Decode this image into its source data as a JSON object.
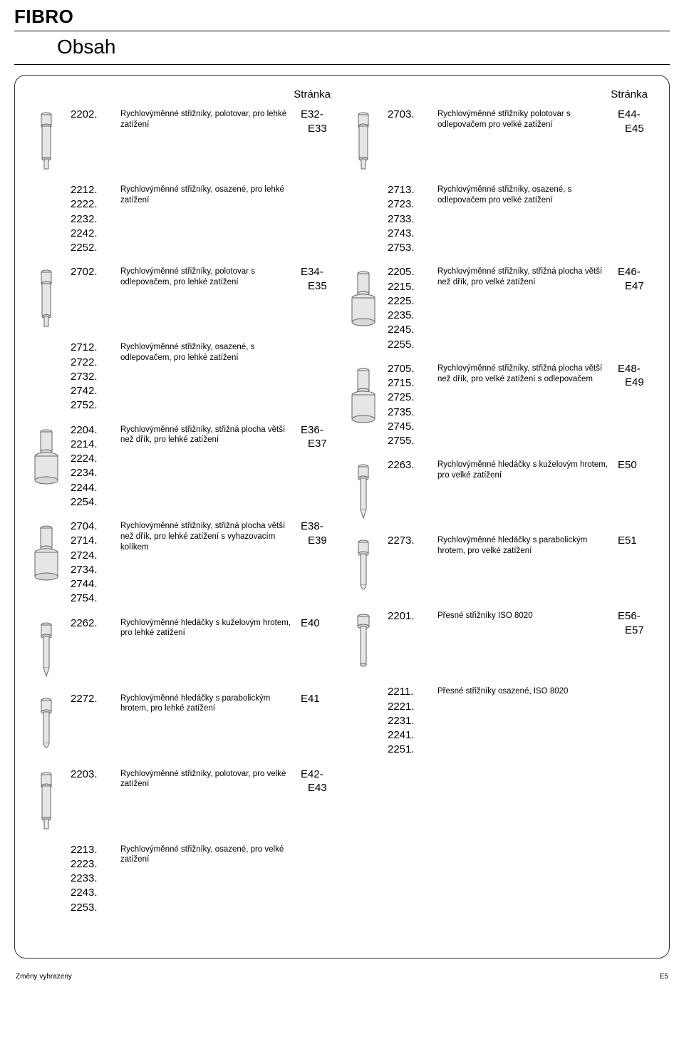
{
  "brand": "FIBRO",
  "title": "Obsah",
  "col_header": "Stránka",
  "footer_left": "Změny vyhrazeny",
  "footer_right": "E5",
  "colors": {
    "stroke": "#666666",
    "fill_light": "#e6e6e6",
    "fill_mid": "#d8d8d8",
    "bg": "#ffffff"
  },
  "left": [
    {
      "icon": "punch-plain",
      "groups": [
        {
          "nums": [
            "2202."
          ],
          "desc": "Rychlovýměnné střižníky, polotovar, pro lehké zatížení",
          "page": "E32-",
          "page2": "E33"
        },
        {
          "nums": [
            "2212.",
            "2222.",
            "2232.",
            "2242.",
            "2252."
          ],
          "desc": "Rychlovýměnné střižníky, osazené, pro lehké zatížení",
          "page": "",
          "page2": ""
        }
      ]
    },
    {
      "icon": "punch-eject",
      "groups": [
        {
          "nums": [
            "2702."
          ],
          "desc": "Rychlovýměnné střižníky, polotovar s odlepovačem, pro lehké zatížení",
          "page": "E34-",
          "page2": "E35"
        },
        {
          "nums": [
            "2712.",
            "2722.",
            "2732.",
            "2742.",
            "2752."
          ],
          "desc": "Rychlovýměnné střižníky, osazené, s odlepovačem, pro lehké zatížení",
          "page": "",
          "page2": ""
        }
      ]
    },
    {
      "icon": "punch-wide",
      "groups": [
        {
          "nums": [
            "2204.",
            "2214.",
            "2224.",
            "2234.",
            "2244.",
            "2254."
          ],
          "desc": "Rychlovýměnné střižníky, střižná plocha větší než dřík, pro lehké zatížení",
          "page": "E36-",
          "page2": "E37"
        }
      ]
    },
    {
      "icon": "punch-wide-eject",
      "groups": [
        {
          "nums": [
            "2704.",
            "2714.",
            "2724.",
            "2734.",
            "2744.",
            "2754."
          ],
          "desc": "Rychlovýměnné střižníky, střižná plocha větší než dřík, pro lehké zatížení s vyhazovacím kolíkem",
          "page": "E38-",
          "page2": "E39"
        }
      ]
    },
    {
      "icon": "pilot-cone",
      "groups": [
        {
          "nums": [
            "2262."
          ],
          "desc": "Rychlovýměnné hledáčky s kuželovým hrotem, pro lehké zatížení",
          "page": "E40",
          "page2": ""
        }
      ]
    },
    {
      "icon": "pilot-para",
      "groups": [
        {
          "nums": [
            "2272."
          ],
          "desc": "Rychlovýměnné hledáčky s parabolickým hrotem, pro lehké zatížení",
          "page": "E41",
          "page2": ""
        }
      ]
    },
    {
      "icon": "punch-heavy",
      "below": true,
      "groups": [
        {
          "nums": [
            "2203."
          ],
          "desc": "Rychlovýměnné střižníky, polotovar, pro velké zatížení",
          "page": "E42-",
          "page2": "E43"
        },
        {
          "nums": [
            "2213.",
            "2223.",
            "2233.",
            "2243.",
            "2253."
          ],
          "desc": "Rychlovýměnné střižníky, osazené, pro velké zatížení",
          "page": "",
          "page2": ""
        }
      ]
    }
  ],
  "right": [
    {
      "icon": "punch-heavy-eject",
      "groups": [
        {
          "nums": [
            "2703."
          ],
          "desc": "Rychlovýměnné střižníky polotovar s odlepovačem pro velké zatížení",
          "page": "E44-",
          "page2": "E45"
        },
        {
          "nums": [
            "2713.",
            "2723.",
            "2733.",
            "2743.",
            "2753."
          ],
          "desc": "Rychlovýměnné střižníky, osazené, s odlepovačem pro velké zatížení",
          "page": "",
          "page2": ""
        }
      ]
    },
    {
      "icon": "punch-wide-heavy",
      "groups": [
        {
          "nums": [
            "2205.",
            "2215.",
            "2225.",
            "2235.",
            "2245.",
            "2255."
          ],
          "desc": "Rychlovýměnné střižníky, střižná plocha větší než dřík, pro velké zatížení",
          "page": "E46-",
          "page2": "E47"
        }
      ]
    },
    {
      "icon": "punch-wide-heavy-eject",
      "groups": [
        {
          "nums": [
            "2705.",
            "2715.",
            "2725.",
            "2735.",
            "2745.",
            "2755."
          ],
          "desc": "Rychlovýměnné střižníky, střižná plocha větší než dřík, pro velké zatížení s odlepovačem",
          "page": "E48-",
          "page2": "E49"
        }
      ]
    },
    {
      "icon": "pilot-cone-heavy",
      "groups": [
        {
          "nums": [
            "2263."
          ],
          "desc": "Rychlovýměnné hledáčky s kuželovým hrotem, pro velké zatížení",
          "page": "E50",
          "page2": ""
        }
      ]
    },
    {
      "icon": "pilot-para-heavy",
      "groups": [
        {
          "nums": [
            "2273."
          ],
          "desc": "Rychlovýměnné hledáčky s parabolickým hrotem, pro velké zatížení",
          "page": "E51",
          "page2": ""
        }
      ]
    },
    {
      "icon": "iso-punch",
      "groups": [
        {
          "nums": [
            "2201."
          ],
          "desc": "Přesné střižníky ISO 8020",
          "page": "E56-",
          "page2": "E57"
        },
        {
          "nums": [
            "2211.",
            "2221.",
            "2231.",
            "2241.",
            "2251."
          ],
          "desc": "Přesné střižníky osazené, ISO 8020",
          "page": "",
          "page2": ""
        }
      ]
    }
  ]
}
